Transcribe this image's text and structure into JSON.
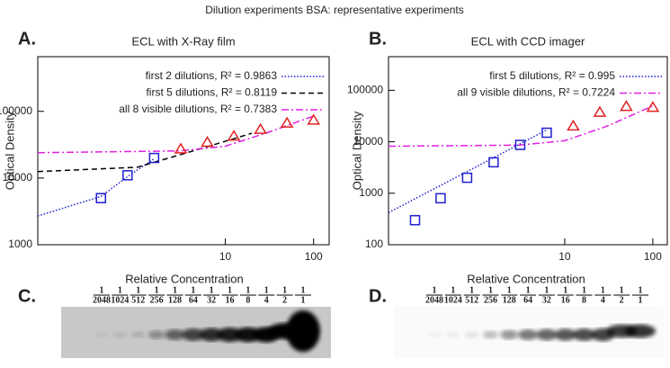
{
  "title": "Dilution experiments BSA: representative experiments",
  "chart_data": [
    {
      "type": "line",
      "panel": "A.",
      "title": "ECL with X-Ray film",
      "ylabel": "Optical Density",
      "xlog": true,
      "ylog": true,
      "xlim": [
        0.075,
        150
      ],
      "ylim": [
        1000,
        660000
      ],
      "xticks": [
        10,
        100
      ],
      "yticks": [
        1000,
        10000,
        100000
      ],
      "legend": "top-right",
      "series": [
        {
          "name": "first 2 dilutions, R² = 0.9863",
          "color": "#1f1fd0",
          "style": "dotted",
          "x": [
            0.075,
            0.39,
            0.78,
            1.56
          ],
          "values": [
            2700,
            5300,
            10500,
            19500
          ]
        },
        {
          "name": "first 5 dilutions, R² = 0.8119",
          "color": "#000000",
          "style": "dashed",
          "x": [
            0.075,
            1,
            5,
            20
          ],
          "values": [
            12500,
            14500,
            27000,
            47000
          ]
        },
        {
          "name": "all 8 visible dilutions, R² = 0.7383",
          "color": "#e020e0",
          "style": "dashdot",
          "x": [
            0.075,
            3,
            10,
            30,
            100
          ],
          "values": [
            24000,
            25500,
            30000,
            48000,
            85000
          ]
        },
        {
          "color": "#1f1fd0",
          "style": "square",
          "x": [
            0.39,
            0.78,
            1.56
          ],
          "values": [
            5000,
            11000,
            20000
          ]
        },
        {
          "color": "#e02020",
          "style": "triangle",
          "x": [
            3.125,
            6.25,
            12.5,
            25,
            50,
            100
          ],
          "values": [
            27000,
            34000,
            42000,
            53000,
            66000,
            73000
          ]
        }
      ]
    },
    {
      "type": "line",
      "panel": "B.",
      "title": "ECL with CCD imager",
      "ylabel": "Optical Density",
      "xlog": true,
      "ylog": true,
      "xlim": [
        0.1,
        146
      ],
      "ylim": [
        100,
        450000
      ],
      "xticks": [
        10,
        100
      ],
      "yticks": [
        100,
        1000,
        10000,
        100000
      ],
      "legend": "top-right",
      "series": [
        {
          "name": "first 5 dilutions, R² = 0.995",
          "color": "#1f1fd0",
          "style": "dotted",
          "x": [
            0.1,
            6.25
          ],
          "values": [
            420,
            17000
          ]
        },
        {
          "name": "all 9 visible dilutions, R² = 0.7224",
          "color": "#e020e0",
          "style": "dashdot",
          "x": [
            0.1,
            3,
            10,
            30,
            100
          ],
          "values": [
            8200,
            8600,
            10500,
            20000,
            50000
          ]
        },
        {
          "color": "#1f1fd0",
          "style": "square",
          "x": [
            0.2,
            0.39,
            0.78,
            1.56,
            3.125,
            6.25
          ],
          "values": [
            300,
            800,
            2000,
            4000,
            8700,
            15000
          ]
        },
        {
          "color": "#e02020",
          "style": "triangle",
          "x": [
            12.5,
            25,
            50,
            100
          ],
          "values": [
            20000,
            37000,
            48000,
            46000
          ]
        }
      ]
    }
  ],
  "blots": [
    {
      "panel": "C.",
      "xlabel": "Relative Concentration",
      "fractions": [
        {
          "n": 1,
          "d": 2048
        },
        {
          "n": 1,
          "d": 1024
        },
        {
          "n": 1,
          "d": 512
        },
        {
          "n": 1,
          "d": 256
        },
        {
          "n": 1,
          "d": 128
        },
        {
          "n": 1,
          "d": 64
        },
        {
          "n": 1,
          "d": 32
        },
        {
          "n": 1,
          "d": 16
        },
        {
          "n": 1,
          "d": 8
        },
        {
          "n": 1,
          "d": 4
        },
        {
          "n": 1,
          "d": 2
        },
        {
          "n": 1,
          "d": 1
        }
      ]
    },
    {
      "panel": "D.",
      "xlabel": "Relative Concentration",
      "fractions": [
        {
          "n": 1,
          "d": 2048
        },
        {
          "n": 1,
          "d": 1024
        },
        {
          "n": 1,
          "d": 512
        },
        {
          "n": 1,
          "d": 256
        },
        {
          "n": 1,
          "d": 128
        },
        {
          "n": 1,
          "d": 64
        },
        {
          "n": 1,
          "d": 32
        },
        {
          "n": 1,
          "d": 16
        },
        {
          "n": 1,
          "d": 8
        },
        {
          "n": 1,
          "d": 4
        },
        {
          "n": 1,
          "d": 2
        },
        {
          "n": 1,
          "d": 1
        }
      ]
    }
  ]
}
